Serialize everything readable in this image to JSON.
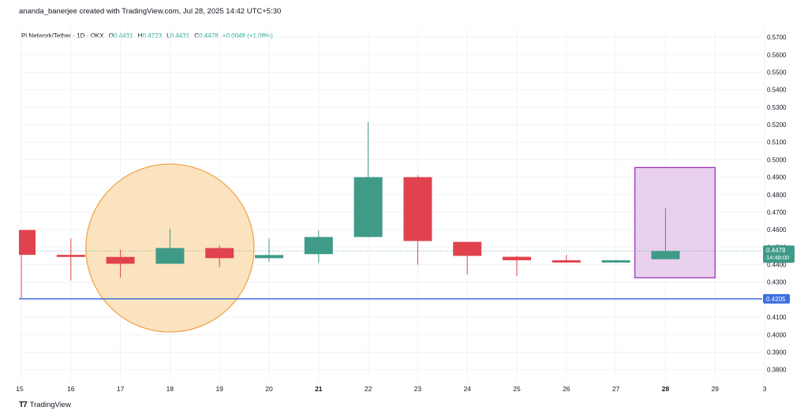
{
  "header": {
    "credit": "ananda_banerjee created with TradingView.com, Jul 28, 2025 14:42 UTC+5:30"
  },
  "legend": {
    "symbol": "Pi Network/Tether · 1D · OKX",
    "open_key": "O",
    "open": "0.4431",
    "high_key": "H",
    "high": "0.4723",
    "low_key": "L",
    "low": "0.4431",
    "close_key": "C",
    "close": "0.4478",
    "change": "+0.0048 (+1.08%)"
  },
  "footer": {
    "brand": "TradingView",
    "brand_icon": "tradingview-logo-icon"
  },
  "colors": {
    "up": "#3f9a87",
    "down": "#e0434d",
    "support_line": "#3d6fe0",
    "price_tag": "#3f9a87",
    "circle_fill": "#fbe3bf",
    "circle_stroke": "#f0a64a",
    "box_fill": "#e8d0ee",
    "box_stroke": "#9c33b5",
    "grid": "#f1f2f5",
    "axis_text": "#131722"
  },
  "chart_data": {
    "type": "candlestick",
    "x_ticks": [
      "15",
      "16",
      "17",
      "18",
      "19",
      "20",
      "21",
      "22",
      "23",
      "24",
      "25",
      "26",
      "27",
      "28",
      "29",
      "3"
    ],
    "bold_ticks": [
      "21",
      "28"
    ],
    "y_ticks": [
      "0.5700",
      "0.5600",
      "0.5500",
      "0.5400",
      "0.5300",
      "0.5200",
      "0.5100",
      "0.5000",
      "0.4900",
      "0.4800",
      "0.4700",
      "0.4600",
      "0.4500",
      "0.4400",
      "0.4300",
      "0.4100",
      "0.4000",
      "0.3900",
      "0.3800"
    ],
    "ylim": [
      0.374,
      0.575
    ],
    "candles": [
      {
        "date": "15",
        "open": 0.4598,
        "high": 0.4598,
        "low": 0.4205,
        "close": 0.4456
      },
      {
        "date": "16",
        "open": 0.4456,
        "high": 0.455,
        "low": 0.431,
        "close": 0.4444
      },
      {
        "date": "17",
        "open": 0.4444,
        "high": 0.4485,
        "low": 0.4325,
        "close": 0.4405
      },
      {
        "date": "18",
        "open": 0.4405,
        "high": 0.4605,
        "low": 0.4405,
        "close": 0.4495
      },
      {
        "date": "19",
        "open": 0.4495,
        "high": 0.451,
        "low": 0.4385,
        "close": 0.4437
      },
      {
        "date": "20",
        "open": 0.4437,
        "high": 0.455,
        "low": 0.4415,
        "close": 0.4455
      },
      {
        "date": "21",
        "open": 0.446,
        "high": 0.4595,
        "low": 0.441,
        "close": 0.4558
      },
      {
        "date": "22",
        "open": 0.4558,
        "high": 0.5215,
        "low": 0.4555,
        "close": 0.49
      },
      {
        "date": "23",
        "open": 0.49,
        "high": 0.491,
        "low": 0.44,
        "close": 0.4535
      },
      {
        "date": "24",
        "open": 0.453,
        "high": 0.453,
        "low": 0.4345,
        "close": 0.445
      },
      {
        "date": "25",
        "open": 0.4445,
        "high": 0.445,
        "low": 0.4335,
        "close": 0.4425
      },
      {
        "date": "26",
        "open": 0.4425,
        "high": 0.4455,
        "low": 0.441,
        "close": 0.4412
      },
      {
        "date": "27",
        "open": 0.4412,
        "high": 0.4428,
        "low": 0.4412,
        "close": 0.4425
      },
      {
        "date": "28",
        "open": 0.4431,
        "high": 0.4723,
        "low": 0.4431,
        "close": 0.4478
      }
    ],
    "support_level": 0.4205,
    "support_label": "0.4205",
    "last_price_label": "0.4478",
    "countdown_label": "14:48:00",
    "last_price": 0.4478,
    "annotations": [
      {
        "kind": "circle",
        "around": "18",
        "y_top": 0.4645,
        "y_bottom": 0.4345
      },
      {
        "kind": "box",
        "from": "27",
        "to": "29",
        "y_top": 0.4955,
        "y_bottom": 0.4325
      }
    ]
  }
}
